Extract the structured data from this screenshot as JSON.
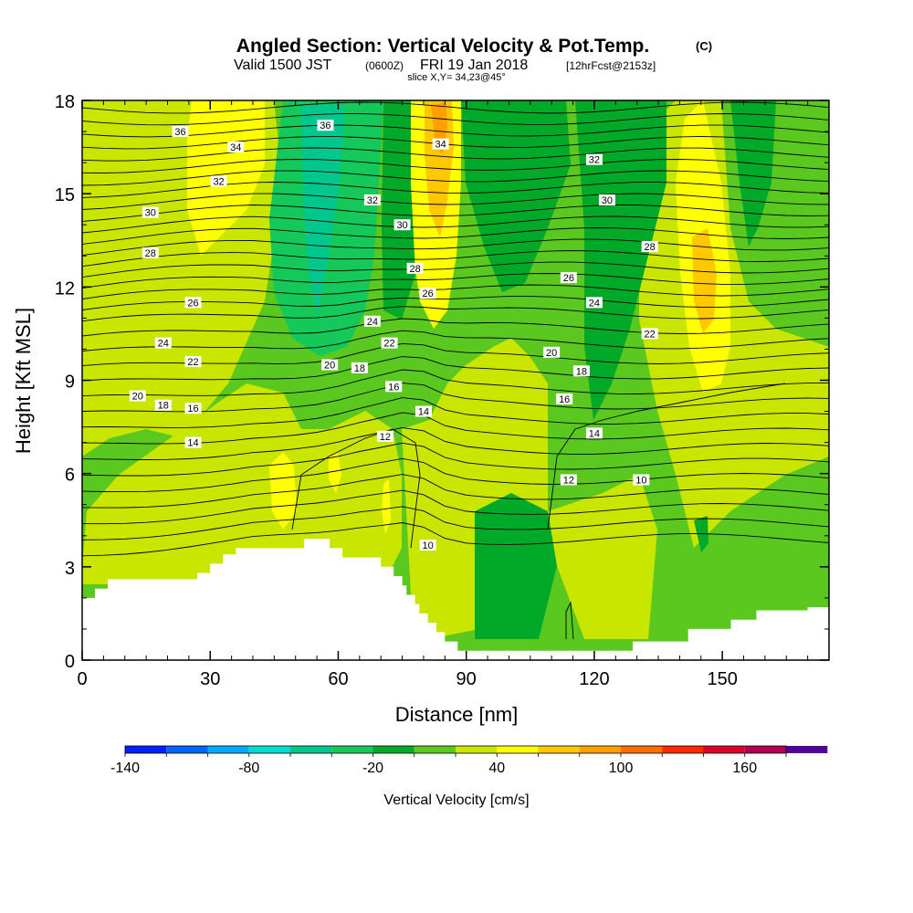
{
  "chart_data": {
    "type": "heatmap",
    "title": "Angled Section: Vertical Velocity & Pot.Temp.",
    "title_units": "(C)",
    "subtitle": {
      "valid": "Valid 1500 JST",
      "utc": "(0600Z)",
      "date": "FRI 19 Jan 2018",
      "forecast": "[12hrFcst@2153z]"
    },
    "slice_label": "slice X,Y= 34,23@45°",
    "xlabel": "Distance [nm]",
    "ylabel": "Height [Kft MSL]",
    "xlim": [
      0,
      175
    ],
    "ylim": [
      0,
      18
    ],
    "x_ticks": [
      0,
      30,
      60,
      90,
      120,
      150
    ],
    "x_tick_labels": [
      "0",
      "30",
      "60",
      "90",
      "120",
      "150"
    ],
    "y_ticks": [
      0,
      3,
      6,
      9,
      12,
      15,
      18
    ],
    "y_tick_labels": [
      "0",
      "3",
      "6",
      "9",
      "12",
      "15",
      "18"
    ],
    "terrain": [
      [
        0,
        2.0
      ],
      [
        3,
        2.0
      ],
      [
        3,
        2.3
      ],
      [
        6,
        2.3
      ],
      [
        6,
        2.6
      ],
      [
        27,
        2.6
      ],
      [
        27,
        2.8
      ],
      [
        30,
        2.8
      ],
      [
        30,
        3.1
      ],
      [
        33,
        3.1
      ],
      [
        33,
        3.4
      ],
      [
        36,
        3.4
      ],
      [
        36,
        3.6
      ],
      [
        52,
        3.6
      ],
      [
        52,
        3.9
      ],
      [
        58,
        3.9
      ],
      [
        58,
        3.6
      ],
      [
        61,
        3.6
      ],
      [
        61,
        3.3
      ],
      [
        70,
        3.3
      ],
      [
        70,
        3.0
      ],
      [
        73,
        3.0
      ],
      [
        73,
        2.7
      ],
      [
        75,
        2.7
      ],
      [
        75,
        2.4
      ],
      [
        76,
        2.4
      ],
      [
        76,
        2.1
      ],
      [
        78,
        2.1
      ],
      [
        78,
        1.8
      ],
      [
        79,
        1.8
      ],
      [
        79,
        1.5
      ],
      [
        81,
        1.5
      ],
      [
        81,
        1.2
      ],
      [
        83,
        1.2
      ],
      [
        83,
        0.9
      ],
      [
        85,
        0.9
      ],
      [
        85,
        0.6
      ],
      [
        88,
        0.6
      ],
      [
        88,
        0.3
      ],
      [
        129,
        0.3
      ],
      [
        129,
        0.6
      ],
      [
        142,
        0.6
      ],
      [
        142,
        1.0
      ],
      [
        152,
        1.0
      ],
      [
        152,
        1.3
      ],
      [
        158,
        1.3
      ],
      [
        158,
        1.6
      ],
      [
        170,
        1.6
      ],
      [
        170,
        1.7
      ],
      [
        175,
        1.7
      ]
    ],
    "theta_contour_labels": [
      {
        "value": "36",
        "x": 23,
        "y": 17.0
      },
      {
        "value": "34",
        "x": 36,
        "y": 16.5
      },
      {
        "value": "32",
        "x": 32,
        "y": 15.4
      },
      {
        "value": "30",
        "x": 16,
        "y": 14.4
      },
      {
        "value": "28",
        "x": 16,
        "y": 13.1
      },
      {
        "value": "26",
        "x": 26,
        "y": 11.5
      },
      {
        "value": "24",
        "x": 19,
        "y": 10.2
      },
      {
        "value": "22",
        "x": 26,
        "y": 9.6
      },
      {
        "value": "20",
        "x": 13,
        "y": 8.5
      },
      {
        "value": "18",
        "x": 19,
        "y": 8.2
      },
      {
        "value": "16",
        "x": 26,
        "y": 8.1
      },
      {
        "value": "14",
        "x": 26,
        "y": 7.0
      },
      {
        "value": "36",
        "x": 57,
        "y": 17.2
      },
      {
        "value": "32",
        "x": 68,
        "y": 14.8
      },
      {
        "value": "30",
        "x": 75,
        "y": 14.0
      },
      {
        "value": "28",
        "x": 78,
        "y": 12.6
      },
      {
        "value": "26",
        "x": 81,
        "y": 11.8
      },
      {
        "value": "24",
        "x": 68,
        "y": 10.9
      },
      {
        "value": "22",
        "x": 72,
        "y": 10.2
      },
      {
        "value": "20",
        "x": 58,
        "y": 9.5
      },
      {
        "value": "18",
        "x": 65,
        "y": 9.4
      },
      {
        "value": "16",
        "x": 73,
        "y": 8.8
      },
      {
        "value": "14",
        "x": 80,
        "y": 8.0
      },
      {
        "value": "12",
        "x": 71,
        "y": 7.2
      },
      {
        "value": "34",
        "x": 84,
        "y": 16.6
      },
      {
        "value": "10",
        "x": 81,
        "y": 3.7
      },
      {
        "value": "32",
        "x": 120,
        "y": 16.1
      },
      {
        "value": "30",
        "x": 123,
        "y": 14.8
      },
      {
        "value": "28",
        "x": 133,
        "y": 13.3
      },
      {
        "value": "26",
        "x": 114,
        "y": 12.3
      },
      {
        "value": "24",
        "x": 120,
        "y": 11.5
      },
      {
        "value": "22",
        "x": 133,
        "y": 10.5
      },
      {
        "value": "20",
        "x": 110,
        "y": 9.9
      },
      {
        "value": "18",
        "x": 117,
        "y": 9.3
      },
      {
        "value": "16",
        "x": 113,
        "y": 8.4
      },
      {
        "value": "14",
        "x": 120,
        "y": 7.3
      },
      {
        "value": "12",
        "x": 114,
        "y": 5.8
      },
      {
        "value": "10",
        "x": 131,
        "y": 5.8
      }
    ],
    "colorbar": {
      "label": "Vertical Velocity [cm/s]",
      "min": -140,
      "max": 180,
      "step": 20,
      "tick_values": [
        -140,
        -80,
        -20,
        40,
        100,
        160
      ],
      "tick_labels": [
        "-140",
        "-80",
        "-20",
        "40",
        "100",
        "160"
      ],
      "colors": [
        "#0020ff",
        "#0064ff",
        "#00aaff",
        "#00dcd2",
        "#00c88c",
        "#14c85a",
        "#00aa28",
        "#5ac81e",
        "#c8e600",
        "#ffff00",
        "#ffc800",
        "#ffa000",
        "#ff6e00",
        "#ff2800",
        "#dc0028",
        "#b40050",
        "#500096"
      ]
    },
    "field_background": "#5ac81e"
  }
}
